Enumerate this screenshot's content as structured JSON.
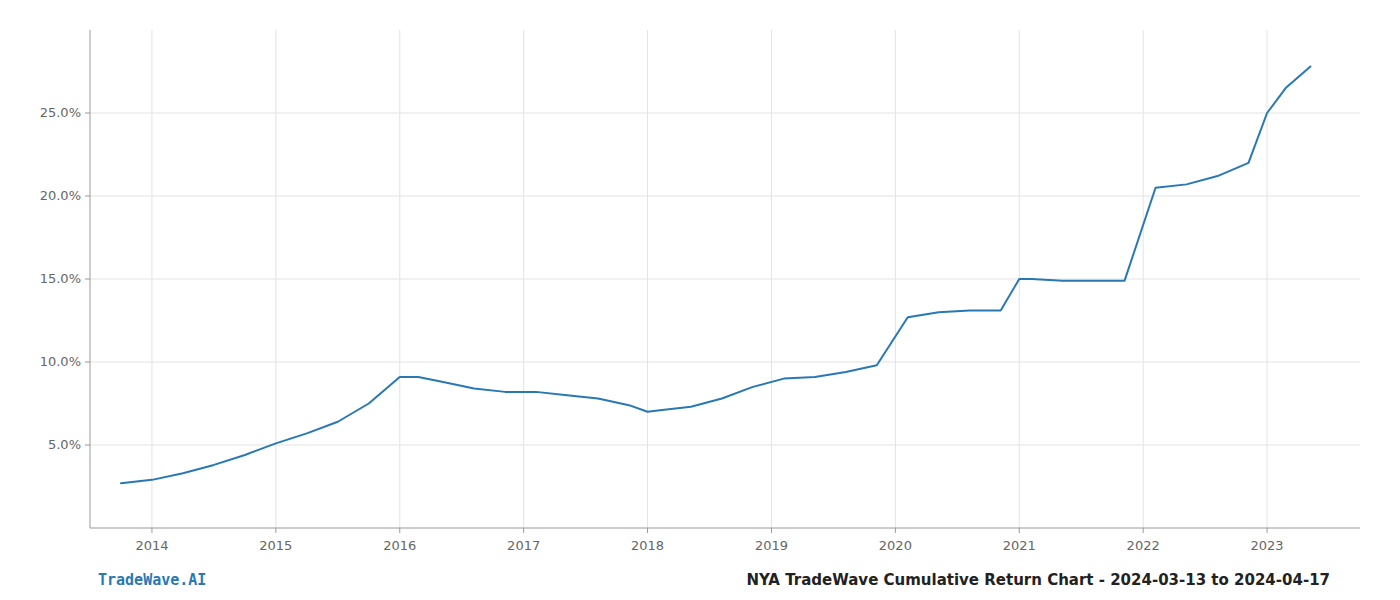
{
  "chart_data": {
    "type": "line",
    "x": [
      2013.75,
      2014.0,
      2014.25,
      2014.5,
      2014.75,
      2015.0,
      2015.25,
      2015.5,
      2015.75,
      2016.0,
      2016.15,
      2016.35,
      2016.6,
      2016.85,
      2017.1,
      2017.35,
      2017.6,
      2017.85,
      2018.0,
      2018.1,
      2018.35,
      2018.6,
      2018.85,
      2019.1,
      2019.35,
      2019.6,
      2019.85,
      2020.1,
      2020.35,
      2020.6,
      2020.85,
      2021.0,
      2021.1,
      2021.35,
      2021.6,
      2021.85,
      2022.1,
      2022.35,
      2022.6,
      2022.85,
      2023.0,
      2023.15,
      2023.35
    ],
    "values": [
      0.027,
      0.029,
      0.033,
      0.038,
      0.044,
      0.051,
      0.057,
      0.064,
      0.075,
      0.091,
      0.091,
      0.088,
      0.084,
      0.082,
      0.082,
      0.08,
      0.078,
      0.074,
      0.07,
      0.071,
      0.073,
      0.078,
      0.085,
      0.09,
      0.091,
      0.094,
      0.098,
      0.127,
      0.13,
      0.131,
      0.131,
      0.15,
      0.15,
      0.149,
      0.149,
      0.149,
      0.205,
      0.207,
      0.212,
      0.22,
      0.25,
      0.265,
      0.278
    ],
    "color": "#2878b5",
    "xlim": [
      2013.5,
      2023.75
    ],
    "ylim": [
      0.0,
      0.3
    ],
    "xticks": [
      2014,
      2015,
      2016,
      2017,
      2018,
      2019,
      2020,
      2021,
      2022,
      2023
    ],
    "yticks": [
      {
        "value": 0.05,
        "label": "5.0%"
      },
      {
        "value": 0.1,
        "label": "10.0%"
      },
      {
        "value": 0.15,
        "label": "15.0%"
      },
      {
        "value": 0.2,
        "label": "20.0%"
      },
      {
        "value": 0.25,
        "label": "25.0%"
      }
    ],
    "grid": true,
    "annotations": [
      {
        "text": "TradeWave.AI",
        "color": "#2878b5"
      },
      {
        "text": "NYA TradeWave Cumulative Return Chart - 2024-03-13 to 2024-04-17",
        "color": "#222222"
      }
    ]
  }
}
